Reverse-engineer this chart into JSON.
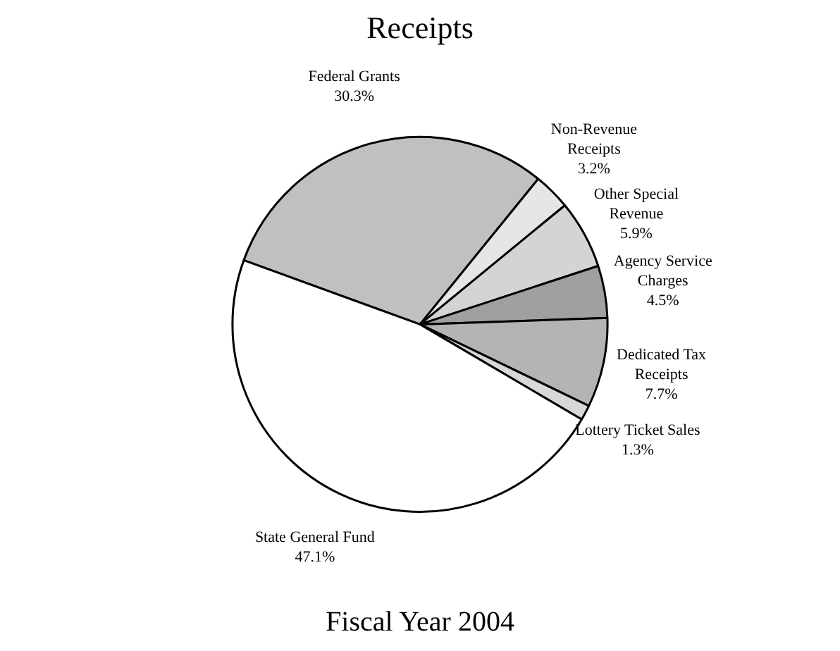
{
  "chart_data": {
    "type": "pie",
    "title": "Receipts",
    "subtitle": "Fiscal Year 2004",
    "categories": [
      "Federal Grants",
      "Non-Revenue Receipts",
      "Other Special Revenue",
      "Agency Service Charges",
      "Dedicated Tax Receipts",
      "Lottery Ticket Sales",
      "State General Fund"
    ],
    "values": [
      30.3,
      3.2,
      5.9,
      4.5,
      7.7,
      1.3,
      47.1
    ],
    "value_labels": [
      "30.3%",
      "3.2%",
      "5.9%",
      "4.5%",
      "7.7%",
      "1.3%",
      "47.1%"
    ],
    "colors": [
      "#c0c0c0",
      "#e6e6e6",
      "#d4d4d4",
      "#a0a0a0",
      "#b4b4b4",
      "#d8d8d8",
      "#ffffff"
    ],
    "legend": false
  }
}
